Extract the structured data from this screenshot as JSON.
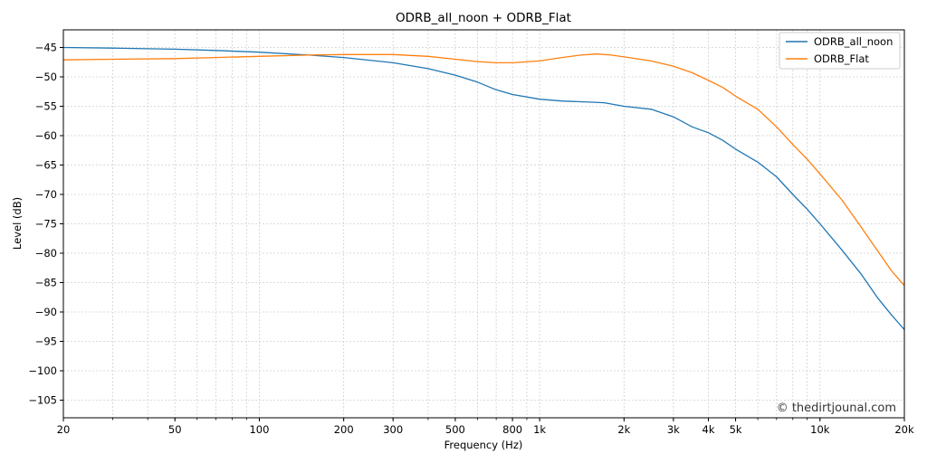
{
  "chart_data": {
    "type": "line",
    "title": "ODRB_all_noon + ODRB_Flat",
    "xlabel": "Frequency (Hz)",
    "ylabel": "Level (dB)",
    "xscale": "log",
    "xlim": [
      20,
      20000
    ],
    "ylim": [
      -108,
      -42
    ],
    "grid": true,
    "legend_position": "top-right",
    "watermark": "© thedirtjounal.com",
    "x_ticks": [
      {
        "value": 20,
        "label": "20"
      },
      {
        "value": 50,
        "label": "50"
      },
      {
        "value": 100,
        "label": "100"
      },
      {
        "value": 200,
        "label": "200"
      },
      {
        "value": 300,
        "label": "300"
      },
      {
        "value": 500,
        "label": "500"
      },
      {
        "value": 800,
        "label": "800"
      },
      {
        "value": 1000,
        "label": "1k"
      },
      {
        "value": 2000,
        "label": "2k"
      },
      {
        "value": 3000,
        "label": "3k"
      },
      {
        "value": 4000,
        "label": "4k"
      },
      {
        "value": 5000,
        "label": "5k"
      },
      {
        "value": 10000,
        "label": "10k"
      },
      {
        "value": 20000,
        "label": "20k"
      }
    ],
    "y_ticks": [
      {
        "value": -45,
        "label": "−45"
      },
      {
        "value": -50,
        "label": "−50"
      },
      {
        "value": -55,
        "label": "−55"
      },
      {
        "value": -60,
        "label": "−60"
      },
      {
        "value": -65,
        "label": "−65"
      },
      {
        "value": -70,
        "label": "−70"
      },
      {
        "value": -75,
        "label": "−75"
      },
      {
        "value": -80,
        "label": "−80"
      },
      {
        "value": -85,
        "label": "−85"
      },
      {
        "value": -90,
        "label": "−90"
      },
      {
        "value": -95,
        "label": "−95"
      },
      {
        "value": -100,
        "label": "−100"
      },
      {
        "value": -105,
        "label": "−105"
      }
    ],
    "series": [
      {
        "name": "ODRB_all_noon",
        "color": "#1f77b4",
        "x": [
          20,
          30,
          50,
          70,
          100,
          150,
          200,
          300,
          400,
          500,
          600,
          700,
          800,
          1000,
          1200,
          1500,
          1700,
          2000,
          2500,
          3000,
          3500,
          4000,
          4500,
          5000,
          6000,
          7000,
          8000,
          9000,
          10000,
          12000,
          14000,
          16000,
          18000,
          20000
        ],
        "y": [
          -45.0,
          -45.1,
          -45.3,
          -45.5,
          -45.8,
          -46.3,
          -46.7,
          -47.6,
          -48.6,
          -49.7,
          -50.9,
          -52.2,
          -53.0,
          -53.8,
          -54.1,
          -54.3,
          -54.4,
          -55.0,
          -55.5,
          -56.8,
          -58.5,
          -59.5,
          -60.8,
          -62.3,
          -64.5,
          -67.0,
          -70.0,
          -72.5,
          -75.0,
          -79.5,
          -83.5,
          -87.5,
          -90.5,
          -93.0
        ]
      },
      {
        "name": "ODRB_Flat",
        "color": "#ff7f0e",
        "x": [
          20,
          30,
          50,
          70,
          100,
          150,
          200,
          300,
          400,
          500,
          600,
          700,
          800,
          1000,
          1200,
          1400,
          1600,
          1800,
          2000,
          2500,
          3000,
          3500,
          4000,
          4500,
          5000,
          6000,
          7000,
          8000,
          9000,
          10000,
          12000,
          14000,
          16000,
          18000,
          20000
        ],
        "y": [
          -47.1,
          -47.0,
          -46.9,
          -46.7,
          -46.5,
          -46.3,
          -46.2,
          -46.2,
          -46.5,
          -47.0,
          -47.4,
          -47.6,
          -47.6,
          -47.3,
          -46.7,
          -46.3,
          -46.1,
          -46.3,
          -46.6,
          -47.3,
          -48.2,
          -49.3,
          -50.6,
          -51.8,
          -53.3,
          -55.5,
          -58.5,
          -61.5,
          -64.0,
          -66.5,
          -71.0,
          -75.5,
          -79.5,
          -83.0,
          -85.5
        ]
      }
    ]
  }
}
